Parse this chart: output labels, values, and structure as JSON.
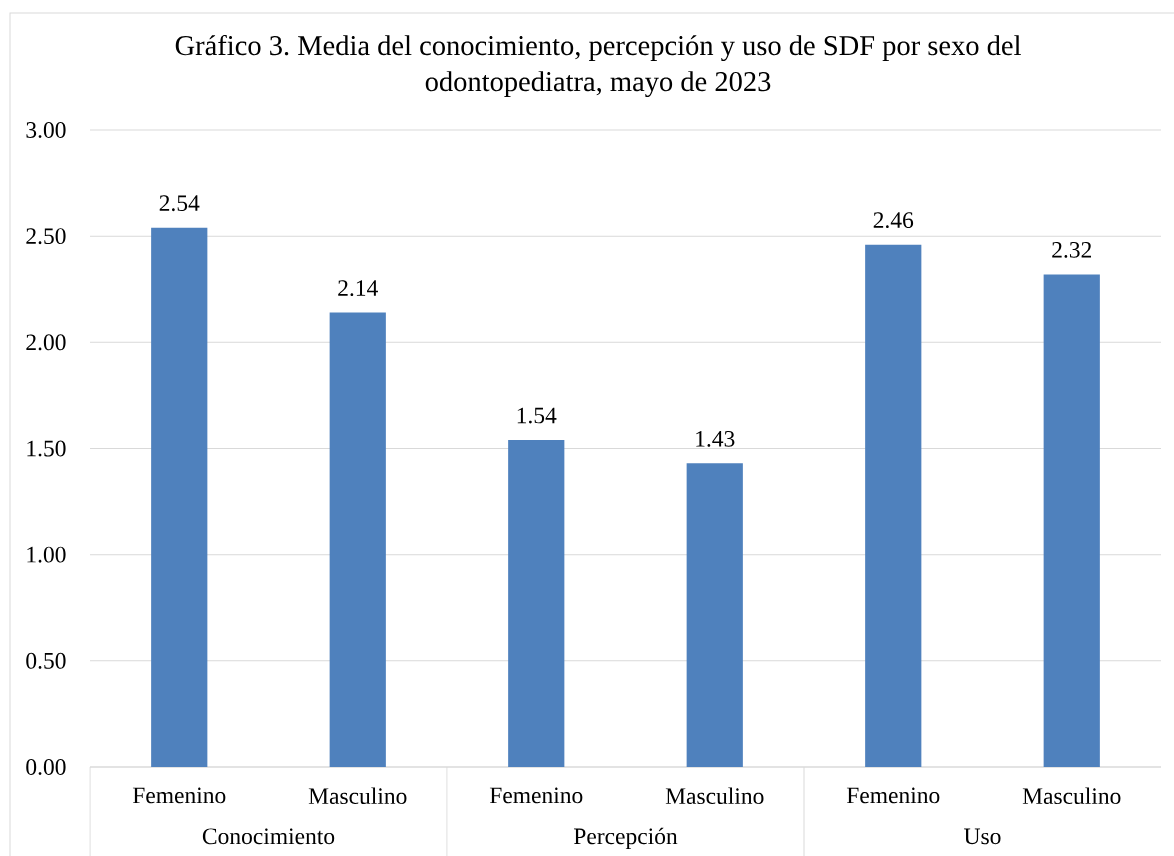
{
  "chart_data": {
    "type": "bar",
    "title": "Gráfico 3. Media del conocimiento, percepción y uso de SDF por sexo del odontopediatra, mayo de 2023",
    "categories": [
      "Conocimiento",
      "Percepción",
      "Uso"
    ],
    "series": [
      {
        "name": "Femenino",
        "color": "#4f81bd",
        "values": [
          2.54,
          1.54,
          2.46
        ]
      },
      {
        "name": "Masculino",
        "color": "#4f81bd",
        "values": [
          2.14,
          1.43,
          2.32
        ]
      }
    ],
    "ylim": [
      0,
      3
    ],
    "yticks": [
      {
        "value": 0,
        "label": "0.00"
      },
      {
        "value": 0.5,
        "label": "0.50"
      },
      {
        "value": 1,
        "label": "1.00"
      },
      {
        "value": 1.5,
        "label": "1.50"
      },
      {
        "value": 2,
        "label": "2.00"
      },
      {
        "value": 2.5,
        "label": "2.50"
      },
      {
        "value": 3,
        "label": "3.00"
      }
    ],
    "grid": "y",
    "data_labels": true
  }
}
